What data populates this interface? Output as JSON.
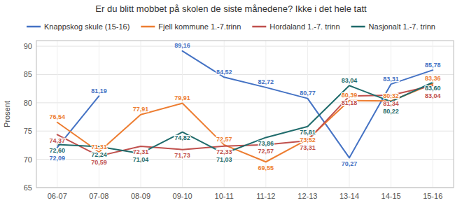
{
  "chart_data": {
    "type": "line",
    "title": "Er du blitt mobbet på skolen de siste månedene? Ikke i det hele tatt",
    "ylabel": "Prosent",
    "categories": [
      "06-07",
      "07-08",
      "08-09",
      "09-10",
      "10-11",
      "11-12",
      "12-13",
      "13-14",
      "14-15",
      "15-16"
    ],
    "series": [
      {
        "name": "Knappskog skule (15-16)",
        "color": "#4472C4",
        "values": [
          72.09,
          81.19,
          null,
          89.16,
          84.52,
          82.72,
          80.77,
          70.27,
          83.31,
          85.78
        ],
        "value_labels": [
          "72,09",
          "81,19",
          null,
          "89,16",
          "84,52",
          "82,72",
          "80,77",
          "70,27",
          "83,31",
          "85,78"
        ]
      },
      {
        "name": "Fjell kommune 1.-7.trinn",
        "color": "#ED7D31",
        "values": [
          76.54,
          71.31,
          77.91,
          79.91,
          72.57,
          69.55,
          73.52,
          80.39,
          80.32,
          83.36
        ],
        "value_labels": [
          "76,54",
          "71,31",
          "77,91",
          "79,91",
          "72,57",
          "69,55",
          "73,52",
          "80,39",
          "80,32",
          "83,36"
        ]
      },
      {
        "name": "Hordaland 1.-7. trinn",
        "color": "#C0504D",
        "values": [
          74.37,
          70.59,
          72.31,
          71.73,
          72.33,
          72.57,
          73.31,
          81.18,
          81.34,
          83.04
        ],
        "value_labels": [
          "74,37",
          "70,59",
          "72,31",
          "71,73",
          "72,33",
          "72,57",
          "73,31",
          "81,18",
          "81,34",
          "83,04"
        ]
      },
      {
        "name": "Nasjonalt 1.-7. trinn",
        "color": "#1F6B6B",
        "values": [
          72.6,
          72.24,
          71.04,
          74.82,
          71.03,
          73.86,
          75.81,
          83.04,
          80.22,
          83.6
        ],
        "value_labels": [
          "72,60",
          "72,24",
          "71,04",
          "74,82",
          "71,03",
          "73,86",
          "75,81",
          "83,04",
          "80,22",
          "83,60"
        ]
      }
    ],
    "ylim": [
      65,
      91
    ],
    "yticks": [
      65,
      70,
      75,
      80,
      85,
      90
    ],
    "grid": true,
    "legend": "top",
    "data_labels": true
  }
}
